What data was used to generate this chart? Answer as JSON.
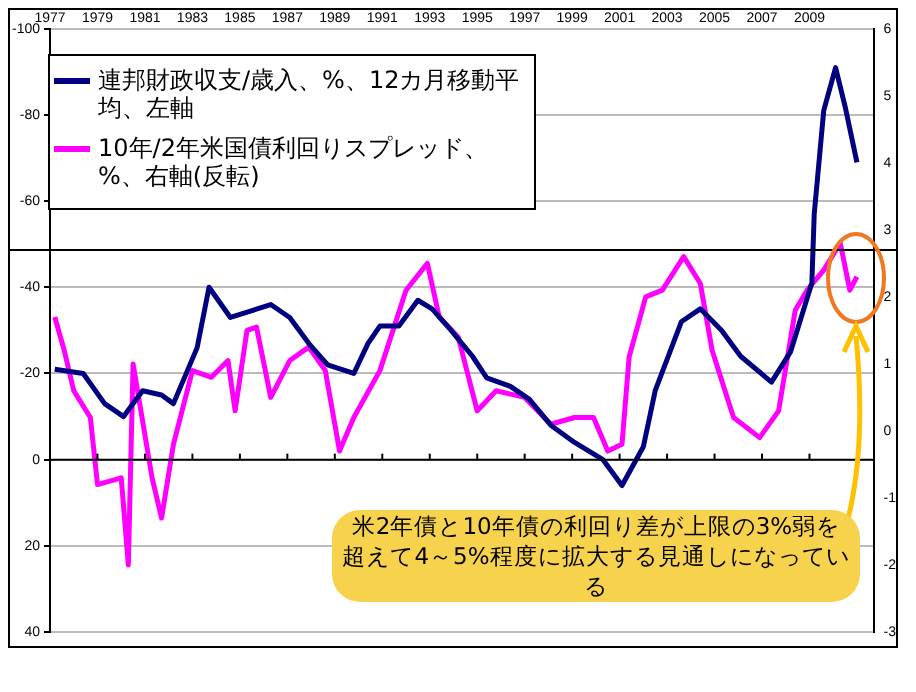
{
  "chart_data": {
    "type": "line",
    "xlim": [
      1977,
      2011.7
    ],
    "xticks": [
      1977,
      1979,
      1981,
      1983,
      1985,
      1987,
      1989,
      1991,
      1993,
      1995,
      1997,
      1999,
      2001,
      2003,
      2005,
      2007,
      2009
    ],
    "ylim": [
      40,
      -100
    ],
    "yticks": [
      -100,
      -80,
      -60,
      -40,
      -20,
      0,
      20,
      40
    ],
    "y2lim": [
      -3,
      6
    ],
    "y2ticks": [
      -3,
      -2,
      -1,
      0,
      1,
      2,
      3,
      4,
      5,
      6
    ],
    "grid": "y",
    "legend": "top left",
    "marker": "none",
    "line_style": "solid",
    "ref_lines": [
      {
        "axis": "y2",
        "value": 2.7,
        "color": "#000000"
      }
    ],
    "annotations": [
      "米2年債と10年債の利回り差が上限の3%弱を超えて4～5%程度に拡大する見通しになっている"
    ],
    "series": [
      {
        "name": "連邦財政収支/歳入、%、12カ月移動平均、左軸",
        "color": "#000080",
        "x": [
          1977.2,
          1978.4,
          1979.3,
          1980.1,
          1980.9,
          1981.7,
          1982.2,
          1983.2,
          1983.7,
          1984.6,
          1986.3,
          1987.1,
          1987.9,
          1988.7,
          1989.8,
          1990.4,
          1990.9,
          1991.7,
          1992.5,
          1993.1,
          1993.9,
          1994.8,
          1995.4,
          1996.4,
          1997.2,
          1998.1,
          1999.1,
          2000.3,
          2001.1,
          2002.0,
          2002.5,
          2003.6,
          2004.4,
          2005.3,
          2006.1,
          2007.4,
          2008.2,
          2009.1,
          2009.2,
          2009.6,
          2010.1,
          2010.5,
          2011.0
        ],
        "values": [
          -21,
          -20,
          -13,
          -10,
          -16,
          -15,
          -13,
          -26,
          -40,
          -33,
          -36,
          -33,
          -27,
          -22,
          -20,
          -27,
          -31,
          -31,
          -37,
          -35,
          -30,
          -24,
          -19,
          -17,
          -14,
          -8,
          -4,
          0,
          6,
          -3,
          -16,
          -32,
          -35,
          -30,
          -24,
          -18,
          -25,
          -41,
          -57,
          -81,
          -91,
          -82,
          -69
        ]
      },
      {
        "name": "10年/2年米国債利回りスプレッド、%、右軸(反転)",
        "color": "#ff00ff",
        "axis": "y2",
        "x": [
          1977.2,
          1977.6,
          1978.0,
          1978.7,
          1979.0,
          1980.0,
          1980.3,
          1980.5,
          1981.3,
          1981.7,
          1982.2,
          1983.0,
          1983.8,
          1984.5,
          1984.8,
          1985.3,
          1985.7,
          1986.3,
          1987.1,
          1987.9,
          1988.6,
          1989.2,
          1989.8,
          1990.9,
          1992.0,
          1992.9,
          1993.4,
          1994.2,
          1995.0,
          1995.8,
          1997.0,
          1998.1,
          1999.1,
          1999.9,
          2000.5,
          2001.1,
          2001.4,
          2002.1,
          2002.8,
          2003.7,
          2004.4,
          2004.9,
          2005.8,
          2006.9,
          2007.7,
          2008.4,
          2008.9,
          2009.6,
          2010.3,
          2010.7,
          2011.0
        ],
        "values": [
          1.7,
          1.2,
          0.6,
          0.2,
          -0.8,
          -0.7,
          -2.0,
          1.0,
          -0.7,
          -1.3,
          -0.2,
          0.9,
          0.8,
          1.05,
          0.3,
          1.5,
          1.55,
          0.5,
          1.05,
          1.25,
          0.9,
          -0.3,
          0.2,
          0.9,
          2.1,
          2.5,
          1.7,
          1.4,
          0.3,
          0.6,
          0.5,
          0.1,
          0.2,
          0.2,
          -0.3,
          -0.2,
          1.1,
          2.0,
          2.1,
          2.6,
          2.2,
          1.2,
          0.2,
          -0.1,
          0.3,
          1.8,
          2.1,
          2.4,
          2.8,
          2.1,
          2.3
        ]
      }
    ]
  }
}
